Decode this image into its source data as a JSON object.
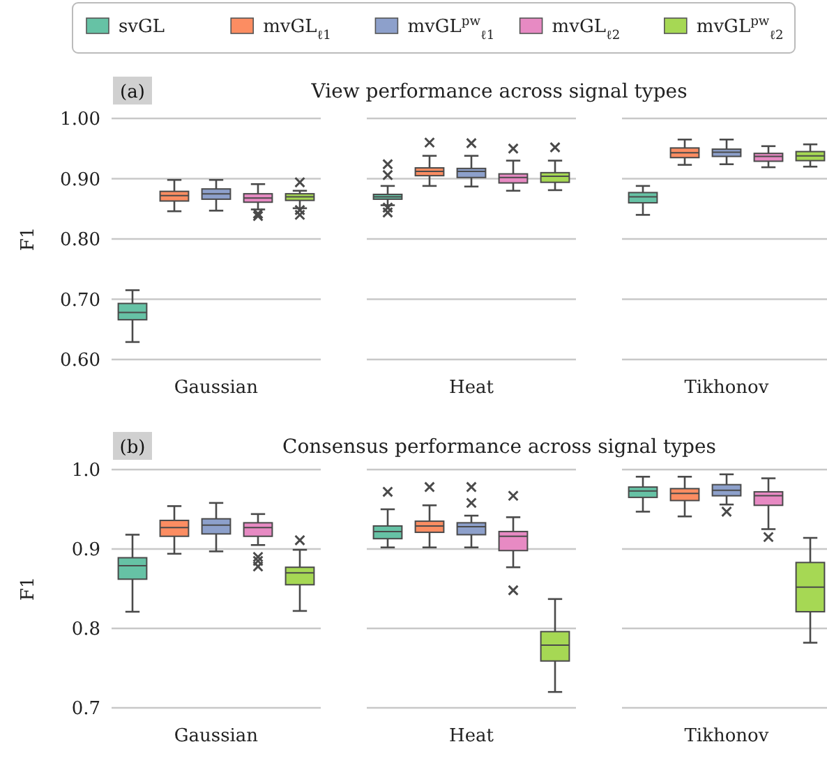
{
  "chart_data": [
    {
      "type": "box",
      "title": "View performance across signal types",
      "annotations": [
        "(a)"
      ],
      "ylabel": "F1",
      "categories": [
        "Gaussian",
        "Heat",
        "Tikhonov"
      ],
      "ylim": [
        0.6,
        1.0
      ],
      "yticks": [
        {
          "value": 0.6,
          "label": "0.60"
        },
        {
          "value": 0.7,
          "label": "0.70"
        },
        {
          "value": 0.8,
          "label": "0.80"
        },
        {
          "value": 0.9,
          "label": "0.90"
        },
        {
          "value": 1.0,
          "label": "1.00"
        }
      ],
      "grid": "y",
      "legend": "top",
      "series": [
        {
          "name": "svGL",
          "color": "#66c2a5",
          "boxes": [
            {
              "low": 0.629,
              "q1": 0.666,
              "median": 0.678,
              "q3": 0.693,
              "high": 0.715
            },
            {
              "low": 0.856,
              "q1": 0.866,
              "median": 0.87,
              "q3": 0.874,
              "high": 0.888,
              "outliers": [
                0.924,
                0.906,
                0.852,
                0.844
              ]
            },
            {
              "low": 0.84,
              "q1": 0.86,
              "median": 0.87,
              "q3": 0.877,
              "high": 0.888
            }
          ]
        },
        {
          "name": "mvGL$_{ℓ1}$",
          "color": "#fc8d62",
          "boxes": [
            {
              "low": 0.846,
              "q1": 0.863,
              "median": 0.872,
              "q3": 0.879,
              "high": 0.898
            },
            {
              "low": 0.888,
              "q1": 0.905,
              "median": 0.912,
              "q3": 0.918,
              "high": 0.938,
              "outliers": [
                0.96
              ]
            },
            {
              "low": 0.923,
              "q1": 0.935,
              "median": 0.943,
              "q3": 0.951,
              "high": 0.965
            }
          ]
        },
        {
          "name": "mvGL$^{pw}$$_{ℓ1}$",
          "color": "#8da0cb",
          "boxes": [
            {
              "low": 0.847,
              "q1": 0.866,
              "median": 0.875,
              "q3": 0.883,
              "high": 0.898
            },
            {
              "low": 0.887,
              "q1": 0.902,
              "median": 0.912,
              "q3": 0.917,
              "high": 0.938,
              "outliers": [
                0.959
              ]
            },
            {
              "low": 0.924,
              "q1": 0.937,
              "median": 0.944,
              "q3": 0.949,
              "high": 0.965
            }
          ]
        },
        {
          "name": "mvGL$_{ℓ2}$",
          "color": "#e78ac3",
          "boxes": [
            {
              "low": 0.849,
              "q1": 0.861,
              "median": 0.868,
              "q3": 0.875,
              "high": 0.891,
              "outliers": [
                0.838,
                0.842
              ]
            },
            {
              "low": 0.88,
              "q1": 0.893,
              "median": 0.902,
              "q3": 0.908,
              "high": 0.93,
              "outliers": [
                0.95
              ]
            },
            {
              "low": 0.919,
              "q1": 0.929,
              "median": 0.937,
              "q3": 0.942,
              "high": 0.954
            }
          ]
        },
        {
          "name": "mvGL$^{pw}$$_{ℓ2}$",
          "color": "#a6d854",
          "boxes": [
            {
              "low": 0.851,
              "q1": 0.864,
              "median": 0.87,
              "q3": 0.875,
              "high": 0.88,
              "outliers": [
                0.894,
                0.848,
                0.84
              ]
            },
            {
              "low": 0.881,
              "q1": 0.894,
              "median": 0.904,
              "q3": 0.91,
              "high": 0.93,
              "outliers": [
                0.952
              ]
            },
            {
              "low": 0.92,
              "q1": 0.93,
              "median": 0.938,
              "q3": 0.945,
              "high": 0.957
            }
          ]
        }
      ]
    },
    {
      "type": "box",
      "title": "Consensus performance across signal types",
      "annotations": [
        "(b)"
      ],
      "ylabel": "F1",
      "categories": [
        "Gaussian",
        "Heat",
        "Tikhonov"
      ],
      "ylim": [
        0.7,
        1.0
      ],
      "yticks": [
        0.7,
        0.8,
        0.9,
        {
          "value": 1.0,
          "label": "1.0"
        }
      ],
      "grid": "y",
      "series": [
        {
          "color": "#66c2a5",
          "boxes": [
            {
              "low": 0.821,
              "q1": 0.862,
              "median": 0.879,
              "q3": 0.889,
              "high": 0.918
            },
            {
              "low": 0.902,
              "q1": 0.913,
              "median": 0.922,
              "q3": 0.929,
              "high": 0.95,
              "outliers": [
                0.972
              ]
            },
            {
              "low": 0.947,
              "q1": 0.965,
              "median": 0.973,
              "q3": 0.978,
              "high": 0.991
            }
          ]
        },
        {
          "color": "#fc8d62",
          "boxes": [
            {
              "low": 0.894,
              "q1": 0.916,
              "median": 0.927,
              "q3": 0.936,
              "high": 0.954
            },
            {
              "low": 0.902,
              "q1": 0.921,
              "median": 0.929,
              "q3": 0.935,
              "high": 0.955,
              "outliers": [
                0.978
              ]
            },
            {
              "low": 0.941,
              "q1": 0.961,
              "median": 0.97,
              "q3": 0.976,
              "high": 0.991
            }
          ]
        },
        {
          "color": "#8da0cb",
          "boxes": [
            {
              "low": 0.897,
              "q1": 0.919,
              "median": 0.93,
              "q3": 0.938,
              "high": 0.958
            },
            {
              "low": 0.902,
              "q1": 0.918,
              "median": 0.928,
              "q3": 0.933,
              "high": 0.942,
              "outliers": [
                0.978,
                0.958
              ]
            },
            {
              "low": 0.956,
              "q1": 0.967,
              "median": 0.974,
              "q3": 0.981,
              "high": 0.994,
              "outliers": [
                0.947
              ]
            }
          ]
        },
        {
          "color": "#e78ac3",
          "boxes": [
            {
              "low": 0.905,
              "q1": 0.916,
              "median": 0.927,
              "q3": 0.933,
              "high": 0.944,
              "outliers": [
                0.89,
                0.885,
                0.878
              ]
            },
            {
              "low": 0.877,
              "q1": 0.898,
              "median": 0.916,
              "q3": 0.922,
              "high": 0.94,
              "outliers": [
                0.967,
                0.848
              ]
            },
            {
              "low": 0.925,
              "q1": 0.955,
              "median": 0.967,
              "q3": 0.972,
              "high": 0.989,
              "outliers": [
                0.915
              ]
            }
          ]
        },
        {
          "color": "#a6d854",
          "boxes": [
            {
              "low": 0.822,
              "q1": 0.855,
              "median": 0.87,
              "q3": 0.877,
              "high": 0.899,
              "outliers": [
                0.911
              ]
            },
            {
              "low": 0.72,
              "q1": 0.759,
              "median": 0.779,
              "q3": 0.796,
              "high": 0.837
            },
            {
              "low": 0.782,
              "q1": 0.821,
              "median": 0.852,
              "q3": 0.883,
              "high": 0.914
            }
          ]
        }
      ]
    }
  ]
}
